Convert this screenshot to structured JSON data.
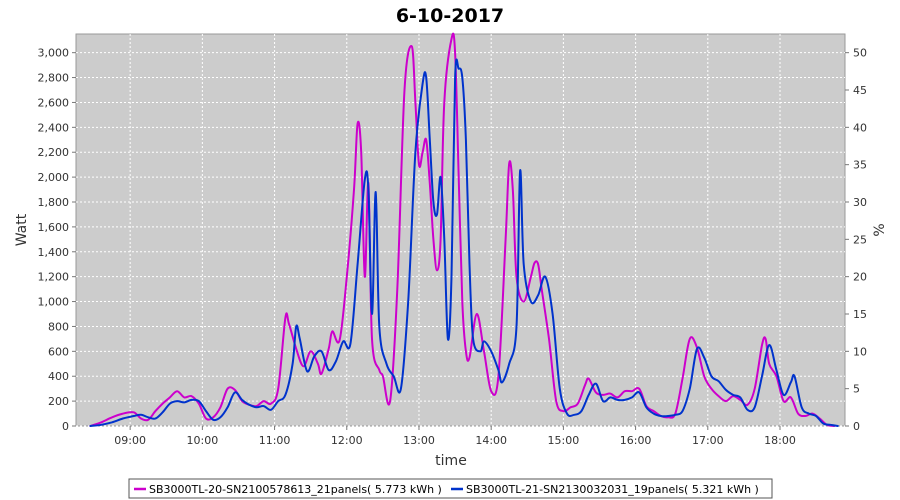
{
  "chart_data": {
    "type": "line",
    "title": "6-10-2017",
    "xlabel": "time",
    "ylabel": "Watt",
    "y2label": "%",
    "xlim": [
      8.25,
      18.9
    ],
    "ylim": [
      0,
      3150
    ],
    "y2lim": [
      0,
      52.5
    ],
    "x_ticks": [
      9,
      10,
      11,
      12,
      13,
      14,
      15,
      16,
      17,
      18
    ],
    "x_tick_labels": [
      "09:00",
      "10:00",
      "11:00",
      "12:00",
      "13:00",
      "14:00",
      "15:00",
      "16:00",
      "17:00",
      "18:00"
    ],
    "y_ticks": [
      0,
      200,
      400,
      600,
      800,
      1000,
      1200,
      1400,
      1600,
      1800,
      2000,
      2200,
      2400,
      2600,
      2800,
      3000
    ],
    "y_tick_labels": [
      "0",
      "200",
      "400",
      "600",
      "800",
      "1,000",
      "1,200",
      "1,400",
      "1,600",
      "1,800",
      "2,000",
      "2,200",
      "2,400",
      "2,600",
      "2,800",
      "3,000"
    ],
    "y2_ticks": [
      0,
      5,
      10,
      15,
      20,
      25,
      30,
      35,
      40,
      45,
      50
    ],
    "y2_tick_labels": [
      "0",
      "5",
      "10",
      "15",
      "20",
      "25",
      "30",
      "35",
      "40",
      "45",
      "50"
    ],
    "grid": true,
    "legend_position": "bottom",
    "series": [
      {
        "name": "SB3000TL-20-SN2100578613_21panels( 5.773 kWh )",
        "color": "#cc00cc",
        "points": [
          [
            8.45,
            0
          ],
          [
            8.6,
            30
          ],
          [
            8.75,
            70
          ],
          [
            8.9,
            100
          ],
          [
            9.05,
            110
          ],
          [
            9.15,
            60
          ],
          [
            9.25,
            50
          ],
          [
            9.35,
            120
          ],
          [
            9.45,
            180
          ],
          [
            9.55,
            230
          ],
          [
            9.65,
            280
          ],
          [
            9.75,
            230
          ],
          [
            9.85,
            240
          ],
          [
            9.95,
            180
          ],
          [
            10.05,
            60
          ],
          [
            10.15,
            70
          ],
          [
            10.25,
            150
          ],
          [
            10.35,
            300
          ],
          [
            10.45,
            290
          ],
          [
            10.55,
            200
          ],
          [
            10.65,
            170
          ],
          [
            10.75,
            160
          ],
          [
            10.85,
            200
          ],
          [
            10.95,
            180
          ],
          [
            11.05,
            300
          ],
          [
            11.15,
            870
          ],
          [
            11.2,
            820
          ],
          [
            11.3,
            620
          ],
          [
            11.4,
            480
          ],
          [
            11.5,
            600
          ],
          [
            11.6,
            500
          ],
          [
            11.65,
            420
          ],
          [
            11.75,
            620
          ],
          [
            11.8,
            760
          ],
          [
            11.9,
            690
          ],
          [
            12.0,
            1200
          ],
          [
            12.1,
            1900
          ],
          [
            12.15,
            2430
          ],
          [
            12.2,
            2200
          ],
          [
            12.25,
            1200
          ],
          [
            12.3,
            1950
          ],
          [
            12.35,
            700
          ],
          [
            12.45,
            450
          ],
          [
            12.5,
            400
          ],
          [
            12.6,
            200
          ],
          [
            12.7,
            1100
          ],
          [
            12.8,
            2700
          ],
          [
            12.9,
            3050
          ],
          [
            12.95,
            2600
          ],
          [
            13.0,
            2100
          ],
          [
            13.05,
            2200
          ],
          [
            13.1,
            2300
          ],
          [
            13.15,
            1950
          ],
          [
            13.2,
            1500
          ],
          [
            13.25,
            1250
          ],
          [
            13.3,
            1500
          ],
          [
            13.35,
            2600
          ],
          [
            13.45,
            3110
          ],
          [
            13.5,
            3000
          ],
          [
            13.55,
            2000
          ],
          [
            13.6,
            1000
          ],
          [
            13.65,
            600
          ],
          [
            13.7,
            550
          ],
          [
            13.8,
            900
          ],
          [
            13.9,
            600
          ],
          [
            14.0,
            280
          ],
          [
            14.1,
            400
          ],
          [
            14.2,
            1500
          ],
          [
            14.25,
            2110
          ],
          [
            14.3,
            1900
          ],
          [
            14.35,
            1200
          ],
          [
            14.45,
            1000
          ],
          [
            14.55,
            1200
          ],
          [
            14.6,
            1310
          ],
          [
            14.65,
            1300
          ],
          [
            14.7,
            1100
          ],
          [
            14.8,
            700
          ],
          [
            14.9,
            200
          ],
          [
            15.0,
            120
          ],
          [
            15.1,
            150
          ],
          [
            15.2,
            180
          ],
          [
            15.3,
            330
          ],
          [
            15.35,
            380
          ],
          [
            15.45,
            270
          ],
          [
            15.55,
            250
          ],
          [
            15.65,
            260
          ],
          [
            15.75,
            230
          ],
          [
            15.85,
            280
          ],
          [
            15.95,
            280
          ],
          [
            16.05,
            300
          ],
          [
            16.15,
            160
          ],
          [
            16.25,
            120
          ],
          [
            16.35,
            80
          ],
          [
            16.45,
            70
          ],
          [
            16.55,
            100
          ],
          [
            16.65,
            380
          ],
          [
            16.75,
            700
          ],
          [
            16.85,
            630
          ],
          [
            16.95,
            400
          ],
          [
            17.05,
            300
          ],
          [
            17.15,
            240
          ],
          [
            17.25,
            200
          ],
          [
            17.35,
            240
          ],
          [
            17.45,
            210
          ],
          [
            17.55,
            170
          ],
          [
            17.65,
            300
          ],
          [
            17.75,
            650
          ],
          [
            17.8,
            700
          ],
          [
            17.85,
            500
          ],
          [
            17.95,
            400
          ],
          [
            18.05,
            200
          ],
          [
            18.15,
            230
          ],
          [
            18.25,
            100
          ],
          [
            18.35,
            80
          ],
          [
            18.45,
            100
          ],
          [
            18.55,
            60
          ],
          [
            18.65,
            10
          ],
          [
            18.75,
            0
          ]
        ]
      },
      {
        "name": "SB3000TL-21-SN2130032031_19panels( 5.321 kWh )",
        "color": "#0033cc",
        "points": [
          [
            8.45,
            0
          ],
          [
            8.6,
            10
          ],
          [
            8.75,
            30
          ],
          [
            8.9,
            60
          ],
          [
            9.05,
            80
          ],
          [
            9.15,
            90
          ],
          [
            9.25,
            70
          ],
          [
            9.35,
            60
          ],
          [
            9.45,
            110
          ],
          [
            9.55,
            180
          ],
          [
            9.65,
            200
          ],
          [
            9.75,
            190
          ],
          [
            9.85,
            210
          ],
          [
            9.95,
            200
          ],
          [
            10.05,
            120
          ],
          [
            10.15,
            50
          ],
          [
            10.25,
            70
          ],
          [
            10.35,
            150
          ],
          [
            10.45,
            270
          ],
          [
            10.55,
            210
          ],
          [
            10.65,
            170
          ],
          [
            10.75,
            150
          ],
          [
            10.85,
            160
          ],
          [
            10.95,
            130
          ],
          [
            11.05,
            200
          ],
          [
            11.15,
            250
          ],
          [
            11.25,
            500
          ],
          [
            11.3,
            800
          ],
          [
            11.35,
            700
          ],
          [
            11.45,
            440
          ],
          [
            11.55,
            560
          ],
          [
            11.65,
            600
          ],
          [
            11.75,
            450
          ],
          [
            11.85,
            520
          ],
          [
            11.95,
            680
          ],
          [
            12.05,
            660
          ],
          [
            12.15,
            1300
          ],
          [
            12.25,
            1980
          ],
          [
            12.3,
            1900
          ],
          [
            12.35,
            900
          ],
          [
            12.4,
            1880
          ],
          [
            12.45,
            800
          ],
          [
            12.55,
            500
          ],
          [
            12.65,
            400
          ],
          [
            12.75,
            300
          ],
          [
            12.85,
            1000
          ],
          [
            12.95,
            2200
          ],
          [
            13.05,
            2750
          ],
          [
            13.1,
            2800
          ],
          [
            13.15,
            2300
          ],
          [
            13.2,
            1800
          ],
          [
            13.25,
            1700
          ],
          [
            13.3,
            2000
          ],
          [
            13.35,
            1500
          ],
          [
            13.4,
            700
          ],
          [
            13.45,
            1200
          ],
          [
            13.5,
            2800
          ],
          [
            13.55,
            2870
          ],
          [
            13.6,
            2800
          ],
          [
            13.65,
            2300
          ],
          [
            13.7,
            1300
          ],
          [
            13.75,
            700
          ],
          [
            13.85,
            600
          ],
          [
            13.9,
            680
          ],
          [
            14.0,
            600
          ],
          [
            14.1,
            450
          ],
          [
            14.15,
            350
          ],
          [
            14.25,
            500
          ],
          [
            14.35,
            800
          ],
          [
            14.4,
            2050
          ],
          [
            14.45,
            1300
          ],
          [
            14.55,
            1000
          ],
          [
            14.65,
            1050
          ],
          [
            14.75,
            1200
          ],
          [
            14.85,
            900
          ],
          [
            14.95,
            300
          ],
          [
            15.05,
            100
          ],
          [
            15.15,
            90
          ],
          [
            15.25,
            120
          ],
          [
            15.35,
            250
          ],
          [
            15.45,
            340
          ],
          [
            15.55,
            200
          ],
          [
            15.65,
            230
          ],
          [
            15.75,
            210
          ],
          [
            15.85,
            210
          ],
          [
            15.95,
            230
          ],
          [
            16.05,
            270
          ],
          [
            16.15,
            150
          ],
          [
            16.25,
            100
          ],
          [
            16.35,
            80
          ],
          [
            16.45,
            80
          ],
          [
            16.55,
            90
          ],
          [
            16.65,
            120
          ],
          [
            16.75,
            300
          ],
          [
            16.85,
            620
          ],
          [
            16.95,
            550
          ],
          [
            17.05,
            400
          ],
          [
            17.15,
            360
          ],
          [
            17.25,
            290
          ],
          [
            17.35,
            250
          ],
          [
            17.45,
            230
          ],
          [
            17.55,
            130
          ],
          [
            17.65,
            150
          ],
          [
            17.75,
            400
          ],
          [
            17.85,
            650
          ],
          [
            17.95,
            450
          ],
          [
            18.05,
            250
          ],
          [
            18.15,
            350
          ],
          [
            18.2,
            400
          ],
          [
            18.3,
            150
          ],
          [
            18.4,
            100
          ],
          [
            18.5,
            80
          ],
          [
            18.6,
            20
          ],
          [
            18.7,
            10
          ],
          [
            18.8,
            0
          ]
        ]
      }
    ]
  }
}
